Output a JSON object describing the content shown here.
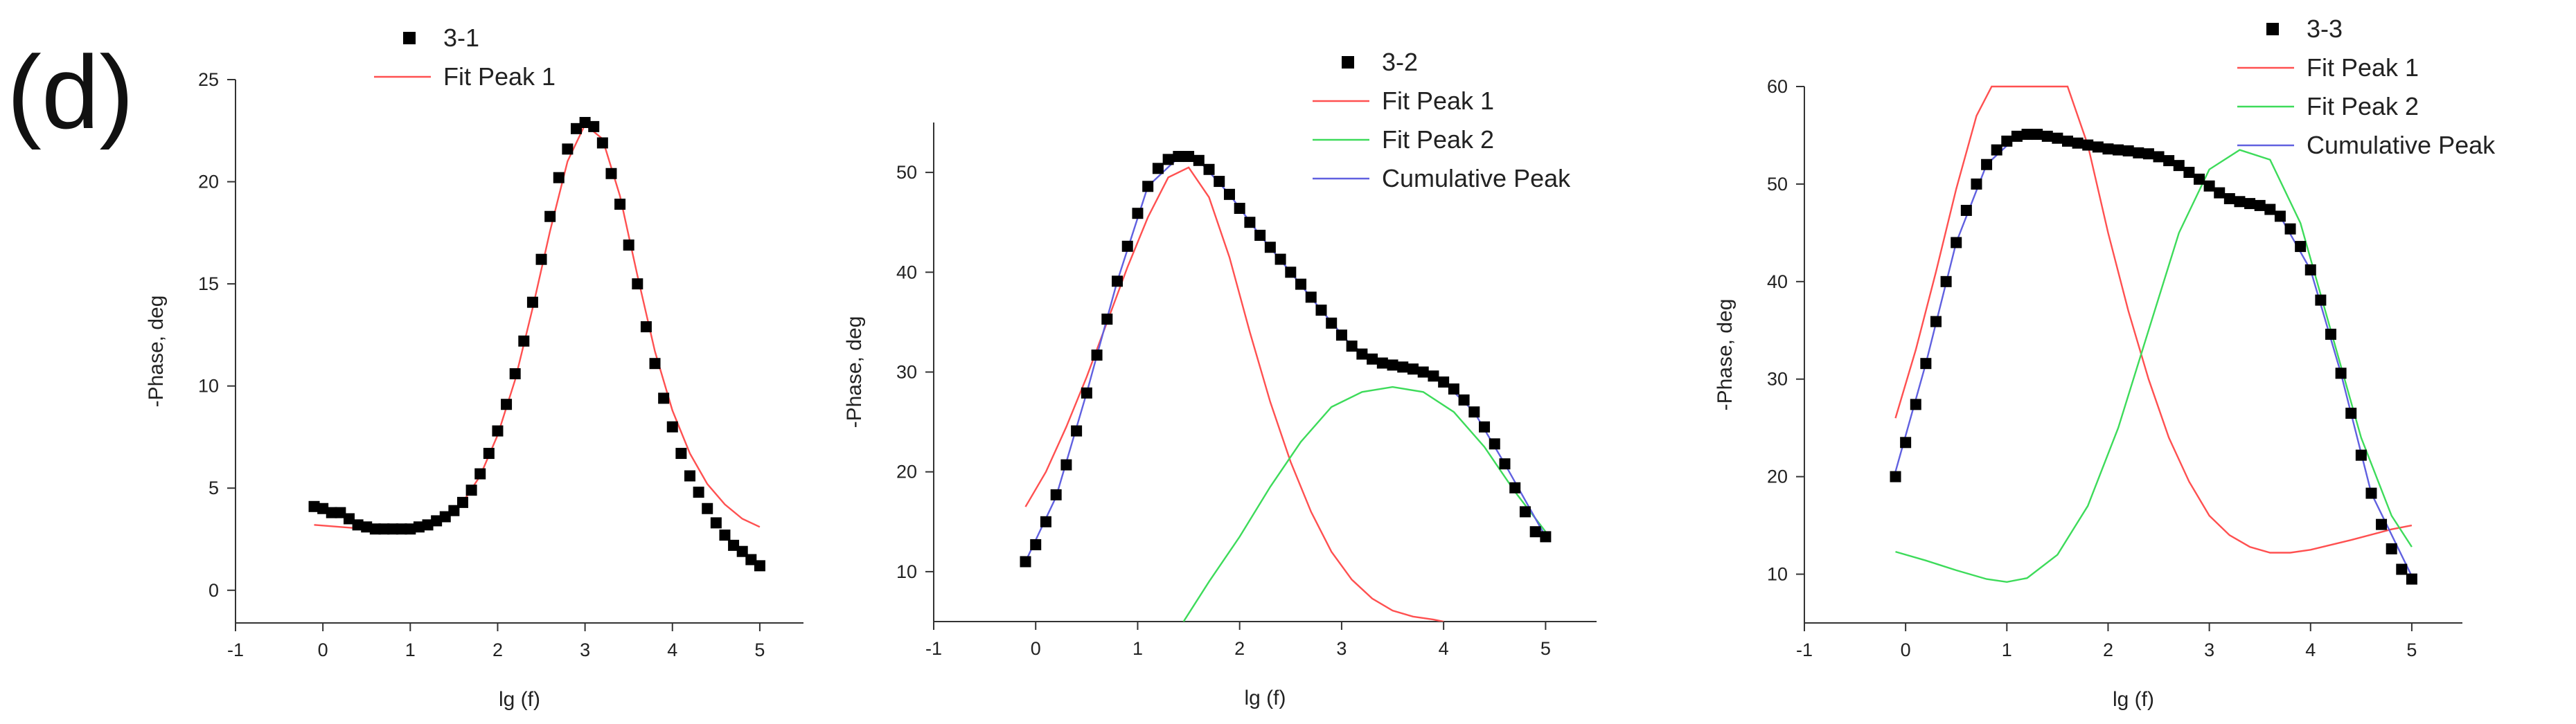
{
  "panel_label": "(d)",
  "chart_data": [
    {
      "type": "scatter",
      "xlabel": "lg (f)",
      "ylabel": "-Phase, deg",
      "xlim": [
        -1,
        5.5
      ],
      "ylim": [
        -1.6,
        25
      ],
      "xticks": [
        -1,
        0,
        1,
        2,
        3,
        4,
        5
      ],
      "yticks": [
        0,
        5,
        10,
        15,
        20,
        25
      ],
      "legend": [
        "3-1",
        "Fit Peak 1"
      ],
      "series": [
        {
          "name": "3-1",
          "kind": "markers",
          "color": "#000000",
          "x": [
            -0.1,
            0.0,
            0.1,
            0.2,
            0.3,
            0.4,
            0.5,
            0.6,
            0.7,
            0.8,
            0.9,
            1.0,
            1.1,
            1.2,
            1.3,
            1.4,
            1.5,
            1.6,
            1.7,
            1.8,
            1.9,
            2.0,
            2.1,
            2.2,
            2.3,
            2.4,
            2.5,
            2.6,
            2.7,
            2.8,
            2.9,
            3.0,
            3.1,
            3.2,
            3.3,
            3.4,
            3.5,
            3.6,
            3.7,
            3.8,
            3.9,
            4.0,
            4.1,
            4.2,
            4.3,
            4.4,
            4.5,
            4.6,
            4.7,
            4.8,
            4.9,
            5.0
          ],
          "y": [
            4.1,
            4.0,
            3.8,
            3.8,
            3.5,
            3.2,
            3.1,
            3.0,
            3.0,
            3.0,
            3.0,
            3.0,
            3.1,
            3.2,
            3.4,
            3.6,
            3.9,
            4.3,
            4.9,
            5.7,
            6.7,
            7.8,
            9.1,
            10.6,
            12.2,
            14.1,
            16.2,
            18.3,
            20.2,
            21.6,
            22.6,
            22.9,
            22.7,
            21.9,
            20.4,
            18.9,
            16.9,
            15.0,
            12.9,
            11.1,
            9.4,
            8.0,
            6.7,
            5.6,
            4.8,
            4.0,
            3.3,
            2.7,
            2.2,
            1.9,
            1.5,
            1.2
          ]
        },
        {
          "name": "Fit Peak 1",
          "kind": "line",
          "color": "#ff5050",
          "x": [
            -0.1,
            0.2,
            0.5,
            0.8,
            1.0,
            1.2,
            1.4,
            1.6,
            1.8,
            2.0,
            2.2,
            2.4,
            2.6,
            2.8,
            3.0,
            3.2,
            3.4,
            3.6,
            3.8,
            4.0,
            4.2,
            4.4,
            4.6,
            4.8,
            5.0
          ],
          "y": [
            3.2,
            3.1,
            3.0,
            2.9,
            2.9,
            3.1,
            3.5,
            4.3,
            5.6,
            7.6,
            10.3,
            13.8,
            17.6,
            21.0,
            22.8,
            22.1,
            19.3,
            15.4,
            11.7,
            8.8,
            6.7,
            5.2,
            4.2,
            3.5,
            3.1
          ]
        }
      ]
    },
    {
      "type": "scatter",
      "xlabel": "lg (f)",
      "ylabel": "-Phase, deg",
      "xlim": [
        -1,
        5.5
      ],
      "ylim": [
        5,
        55
      ],
      "xticks": [
        -1,
        0,
        1,
        2,
        3,
        4,
        5
      ],
      "yticks": [
        10,
        20,
        30,
        40,
        50
      ],
      "legend": [
        "3-2",
        "Fit Peak 1",
        "Fit Peak 2",
        "Cumulative Peak"
      ],
      "series": [
        {
          "name": "3-2",
          "kind": "markers",
          "color": "#000000",
          "x": [
            -0.1,
            0.0,
            0.1,
            0.2,
            0.3,
            0.4,
            0.5,
            0.6,
            0.7,
            0.8,
            0.9,
            1.0,
            1.1,
            1.2,
            1.3,
            1.4,
            1.5,
            1.6,
            1.7,
            1.8,
            1.9,
            2.0,
            2.1,
            2.2,
            2.3,
            2.4,
            2.5,
            2.6,
            2.7,
            2.8,
            2.9,
            3.0,
            3.1,
            3.2,
            3.3,
            3.4,
            3.5,
            3.6,
            3.7,
            3.8,
            3.9,
            4.0,
            4.1,
            4.2,
            4.3,
            4.4,
            4.5,
            4.6,
            4.7,
            4.8,
            4.9,
            5.0
          ],
          "y": [
            11.0,
            12.7,
            15.0,
            17.7,
            20.7,
            24.1,
            27.9,
            31.7,
            35.3,
            39.1,
            42.6,
            45.9,
            48.6,
            50.4,
            51.3,
            51.6,
            51.6,
            51.2,
            50.3,
            49.1,
            47.8,
            46.4,
            45.0,
            43.7,
            42.5,
            41.3,
            40.0,
            38.8,
            37.5,
            36.2,
            34.9,
            33.7,
            32.6,
            31.8,
            31.3,
            30.9,
            30.7,
            30.5,
            30.3,
            30.0,
            29.6,
            29.0,
            28.3,
            27.2,
            26.0,
            24.5,
            22.8,
            20.8,
            18.4,
            16.0,
            14.0,
            13.5
          ]
        },
        {
          "name": "Fit Peak 1",
          "kind": "line",
          "color": "#ff5050",
          "x": [
            -0.1,
            0.1,
            0.3,
            0.5,
            0.7,
            0.9,
            1.1,
            1.3,
            1.5,
            1.7,
            1.9,
            2.1,
            2.3,
            2.5,
            2.7,
            2.9,
            3.1,
            3.3,
            3.5,
            3.7,
            3.9,
            4.0
          ],
          "y": [
            16.5,
            20.0,
            24.5,
            29.5,
            35.0,
            40.5,
            45.5,
            49.5,
            50.5,
            47.5,
            41.5,
            34.0,
            27.0,
            21.0,
            16.0,
            12.0,
            9.2,
            7.3,
            6.1,
            5.5,
            5.2,
            5.0
          ]
        },
        {
          "name": "Fit Peak 2",
          "kind": "line",
          "color": "#3ddb5a",
          "x": [
            1.45,
            1.7,
            2.0,
            2.3,
            2.6,
            2.9,
            3.2,
            3.5,
            3.8,
            4.1,
            4.4,
            4.7,
            5.0
          ],
          "y": [
            5.0,
            9.0,
            13.5,
            18.5,
            23.0,
            26.5,
            28.0,
            28.5,
            28.0,
            26.0,
            22.5,
            18.0,
            14.0
          ]
        },
        {
          "name": "Cumulative Peak",
          "kind": "line",
          "color": "#6060e0",
          "x": [
            -0.1,
            0.2,
            0.5,
            0.8,
            1.1,
            1.4,
            1.6,
            1.9,
            2.2,
            2.5,
            2.8,
            3.1,
            3.4,
            3.7,
            4.0,
            4.3,
            4.6,
            5.0
          ],
          "y": [
            11.0,
            17.5,
            27.9,
            39.1,
            48.6,
            51.5,
            51.2,
            47.8,
            43.7,
            40.0,
            36.2,
            32.6,
            31.0,
            30.3,
            29.0,
            26.0,
            20.8,
            13.5
          ]
        }
      ]
    },
    {
      "type": "scatter",
      "xlabel": "lg (f)",
      "ylabel": "-Phase, deg",
      "xlim": [
        -1,
        5.5
      ],
      "ylim": [
        5,
        60
      ],
      "xticks": [
        -1,
        0,
        1,
        2,
        3,
        4,
        5
      ],
      "yticks": [
        10,
        20,
        30,
        40,
        50,
        60
      ],
      "legend": [
        "3-3",
        "Fit Peak 1",
        "Fit Peak 2",
        "Cumulative Peak"
      ],
      "series": [
        {
          "name": "3-3",
          "kind": "markers",
          "color": "#000000",
          "x": [
            -0.1,
            0.0,
            0.1,
            0.2,
            0.3,
            0.4,
            0.5,
            0.6,
            0.7,
            0.8,
            0.9,
            1.0,
            1.1,
            1.2,
            1.3,
            1.4,
            1.5,
            1.6,
            1.7,
            1.8,
            1.9,
            2.0,
            2.1,
            2.2,
            2.3,
            2.4,
            2.5,
            2.6,
            2.7,
            2.8,
            2.9,
            3.0,
            3.1,
            3.2,
            3.3,
            3.4,
            3.5,
            3.6,
            3.7,
            3.8,
            3.9,
            4.0,
            4.1,
            4.2,
            4.3,
            4.4,
            4.5,
            4.6,
            4.7,
            4.8,
            4.9,
            5.0
          ],
          "y": [
            20.0,
            23.5,
            27.4,
            31.6,
            35.9,
            40.0,
            44.0,
            47.3,
            50.0,
            52.0,
            53.5,
            54.4,
            54.9,
            55.1,
            55.1,
            54.9,
            54.7,
            54.4,
            54.2,
            54.0,
            53.8,
            53.6,
            53.5,
            53.4,
            53.2,
            53.1,
            52.8,
            52.4,
            51.9,
            51.2,
            50.5,
            49.8,
            49.1,
            48.5,
            48.2,
            48.0,
            47.8,
            47.4,
            46.7,
            45.4,
            43.6,
            41.2,
            38.1,
            34.6,
            30.6,
            26.5,
            22.2,
            18.3,
            15.1,
            12.6,
            10.5,
            9.5
          ]
        },
        {
          "name": "Fit Peak 1",
          "kind": "line",
          "color": "#ff5050",
          "x": [
            -0.1,
            0.1,
            0.3,
            0.5,
            0.7,
            0.85,
            1.6,
            1.8,
            2.0,
            2.2,
            2.4,
            2.6,
            2.8,
            3.0,
            3.2,
            3.4,
            3.6,
            3.8,
            4.0,
            4.4,
            4.8,
            5.0
          ],
          "y": [
            26.0,
            33.0,
            41.0,
            49.5,
            57.0,
            60.0,
            60.0,
            54.0,
            45.0,
            37.0,
            30.0,
            24.0,
            19.5,
            16.0,
            14.0,
            12.8,
            12.2,
            12.2,
            12.5,
            13.5,
            14.6,
            15.0
          ]
        },
        {
          "name": "Fit Peak 2",
          "kind": "line",
          "color": "#3ddb5a",
          "x": [
            -0.1,
            0.2,
            0.5,
            0.8,
            1.0,
            1.2,
            1.5,
            1.8,
            2.1,
            2.4,
            2.7,
            3.0,
            3.3,
            3.6,
            3.9,
            4.2,
            4.5,
            4.8,
            5.0
          ],
          "y": [
            12.3,
            11.4,
            10.4,
            9.5,
            9.2,
            9.6,
            12.0,
            17.0,
            25.0,
            35.0,
            45.0,
            51.5,
            53.5,
            52.5,
            46.0,
            35.0,
            24.0,
            16.0,
            12.8
          ]
        },
        {
          "name": "Cumulative Peak",
          "kind": "line",
          "color": "#6060e0",
          "x": [
            -0.1,
            0.2,
            0.5,
            0.8,
            1.1,
            1.3,
            1.6,
            1.9,
            2.2,
            2.5,
            2.8,
            3.1,
            3.4,
            3.7,
            4.0,
            4.3,
            4.6,
            5.0
          ],
          "y": [
            20.5,
            31.6,
            44.0,
            52.0,
            54.9,
            55.1,
            54.4,
            53.8,
            53.4,
            52.8,
            51.2,
            49.1,
            48.0,
            46.7,
            41.2,
            30.6,
            18.3,
            9.8
          ]
        }
      ]
    }
  ]
}
